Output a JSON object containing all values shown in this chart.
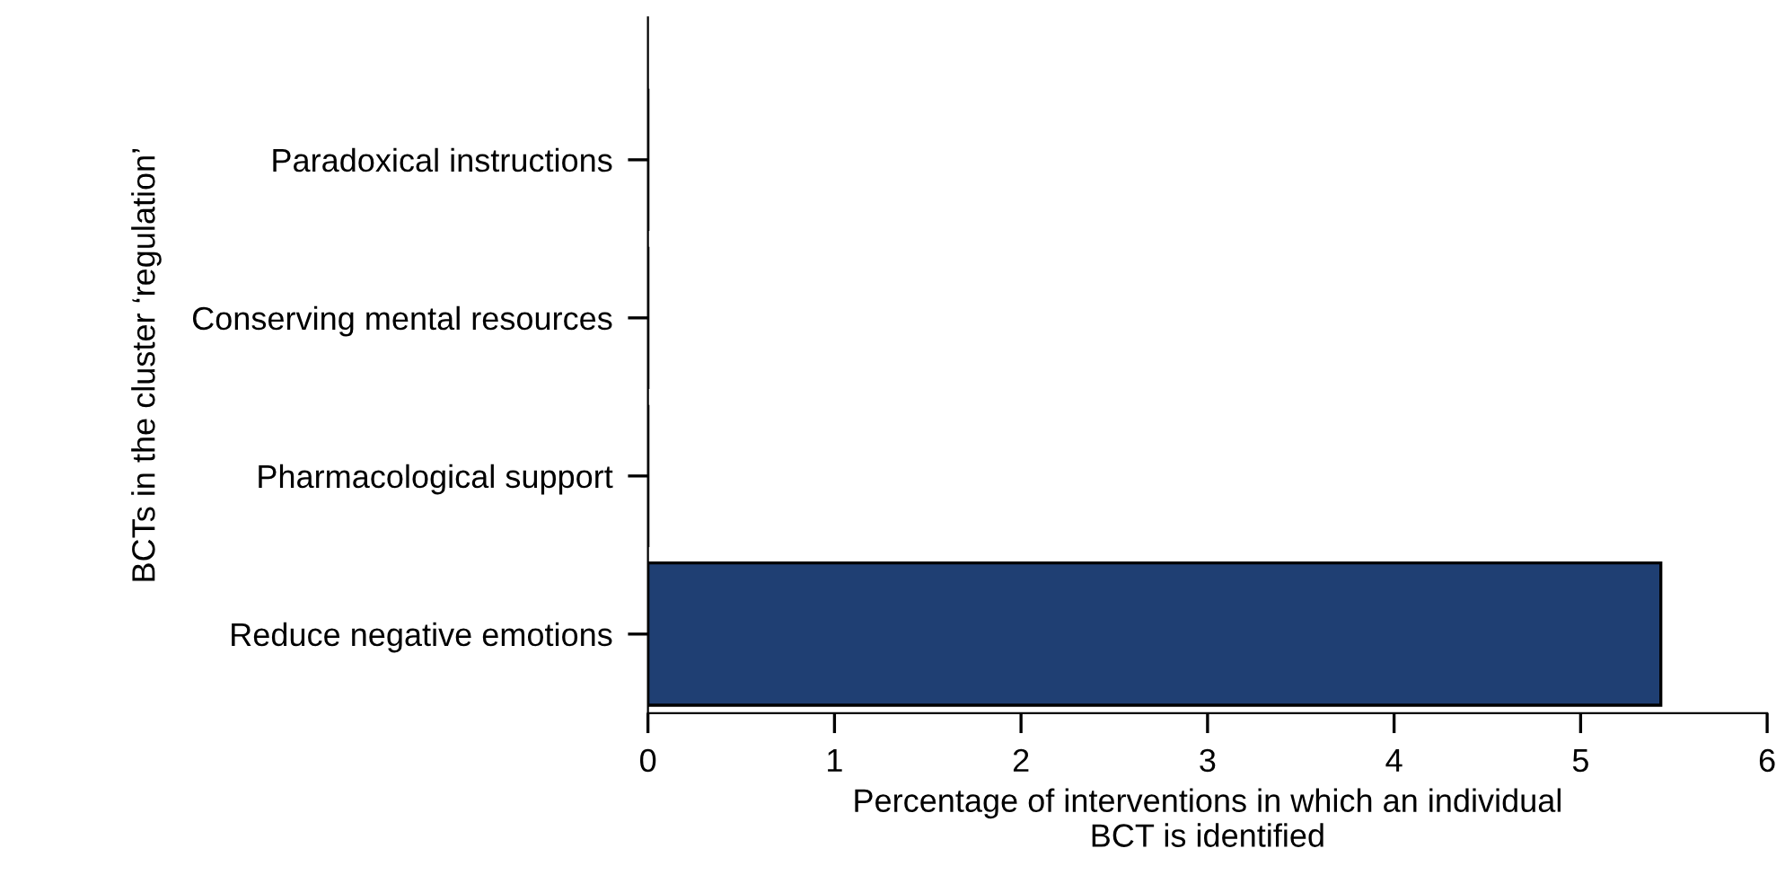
{
  "chart_data": {
    "type": "bar",
    "orientation": "horizontal",
    "categories": [
      "Paradoxical instructions",
      "Conserving mental resources",
      "Pharmacological support",
      "Reduce negative emotions"
    ],
    "values": [
      0,
      0,
      0,
      5.43
    ],
    "color": "#1f3f73",
    "xlim": [
      0,
      6
    ],
    "xticks": [
      0,
      1,
      2,
      3,
      4,
      5,
      6
    ],
    "xlabel": "Percentage of interventions in which an individual\nBCT is identified",
    "ylabel": "BCTs in the cluster ‘regulation’",
    "grid": false,
    "legend": false
  }
}
